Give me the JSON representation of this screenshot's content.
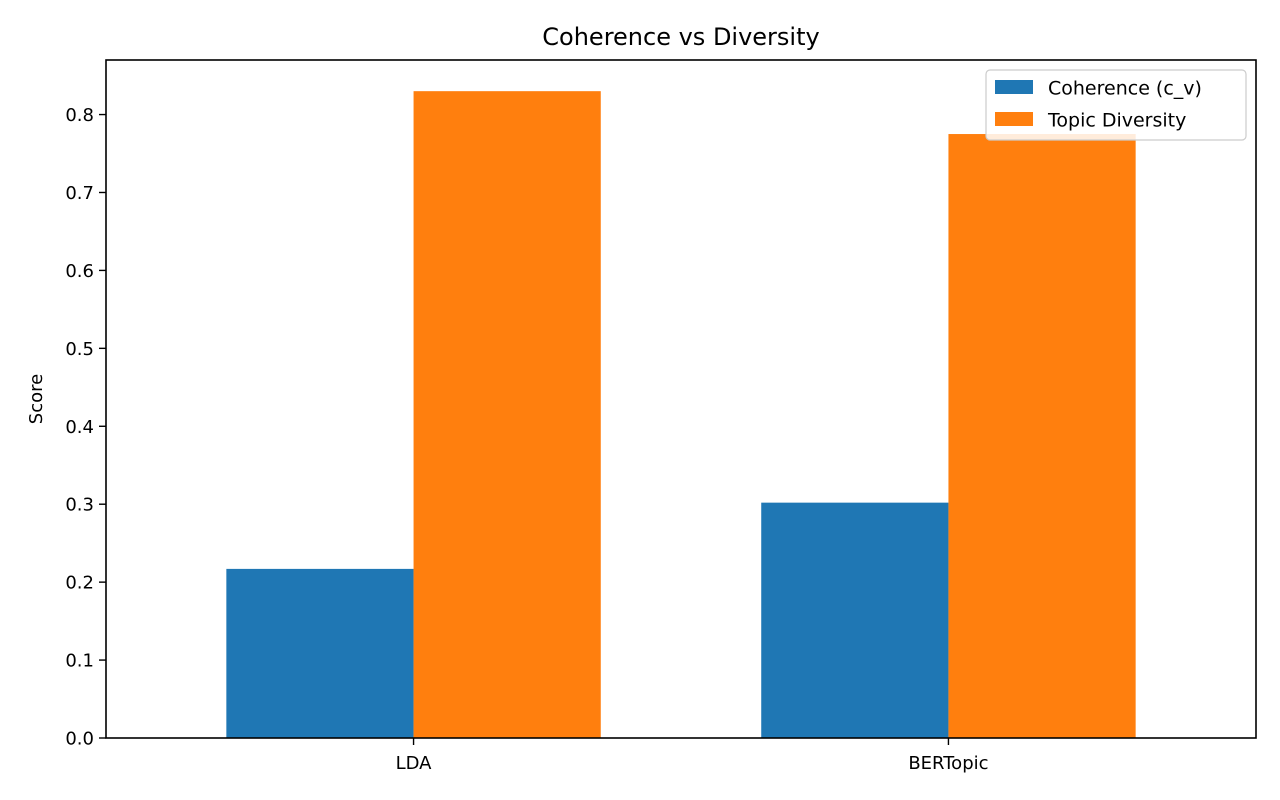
{
  "chart_data": {
    "type": "bar",
    "title": "Coherence vs Diversity",
    "xlabel": "",
    "ylabel": "Score",
    "categories": [
      "LDA",
      "BERTopic"
    ],
    "series": [
      {
        "name": "Coherence (c_v)",
        "values": [
          0.217,
          0.302
        ],
        "color": "#1f77b4"
      },
      {
        "name": "Topic Diversity",
        "values": [
          0.83,
          0.775
        ],
        "color": "#ff7f0e"
      }
    ],
    "ylim": [
      0,
      0.87
    ],
    "yticks": [
      0.0,
      0.1,
      0.2,
      0.3,
      0.4,
      0.5,
      0.6,
      0.7,
      0.8
    ],
    "ytick_labels": [
      "0.0",
      "0.1",
      "0.2",
      "0.3",
      "0.4",
      "0.5",
      "0.6",
      "0.7",
      "0.8"
    ],
    "grid": false,
    "legend_position": "top-right"
  }
}
